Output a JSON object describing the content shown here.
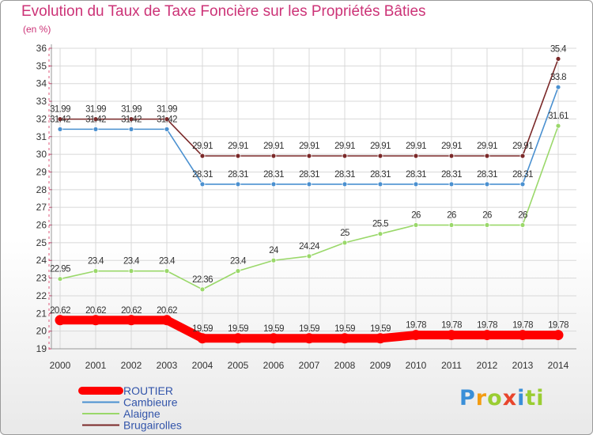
{
  "chart_data": {
    "type": "line",
    "title": "Evolution du Taux de Taxe Foncière sur les Propriétés Bâties",
    "subtitle": "(en %)",
    "ylim": [
      19,
      36
    ],
    "yticks": [
      19,
      20,
      21,
      22,
      23,
      24,
      25,
      26,
      27,
      28,
      29,
      30,
      31,
      32,
      33,
      34,
      35,
      36
    ],
    "categories": [
      "2000",
      "2001",
      "2002",
      "2003",
      "2004",
      "2005",
      "2006",
      "2007",
      "2008",
      "2009",
      "2010",
      "2011",
      "2012",
      "2013",
      "2014"
    ],
    "grid": true,
    "legend_position": "bottom-left",
    "series": [
      {
        "name": "ROUTIER",
        "color": "#ff0000",
        "values": [
          20.62,
          20.62,
          20.62,
          20.62,
          19.59,
          19.59,
          19.59,
          19.59,
          19.59,
          19.59,
          19.78,
          19.78,
          19.78,
          19.78,
          19.78
        ],
        "labels": [
          "20.62",
          "20.62",
          "20.62",
          "20.62",
          "19.59",
          "19.59",
          "19.59",
          "19.59",
          "19.59",
          "19.59",
          "19.78",
          "19.78",
          "19.78",
          "19.78",
          "19.78"
        ]
      },
      {
        "name": "Cambieure",
        "color": "#4a90d0",
        "values": [
          31.42,
          31.42,
          31.42,
          31.42,
          28.31,
          28.31,
          28.31,
          28.31,
          28.31,
          28.31,
          28.31,
          28.31,
          28.31,
          28.31,
          33.8
        ],
        "labels": [
          "31.42",
          "31.42",
          "31.42",
          "31.42",
          "28.31",
          "28.31",
          "28.31",
          "28.31",
          "28.31",
          "28.31",
          "28.31",
          "28.31",
          "28.31",
          "28.31",
          "33.8"
        ]
      },
      {
        "name": "Alaigne",
        "color": "#9ad86a",
        "values": [
          22.95,
          23.4,
          23.4,
          23.4,
          22.36,
          23.4,
          24,
          24.24,
          25,
          25.5,
          26,
          26,
          26,
          26,
          31.61
        ],
        "labels": [
          "22.95",
          "23.4",
          "23.4",
          "23.4",
          "22.36",
          "23.4",
          "24",
          "24.24",
          "25",
          "25.5",
          "26",
          "26",
          "26",
          "26",
          "31.61"
        ]
      },
      {
        "name": "Brugairolles",
        "color": "#7a2828",
        "values": [
          31.99,
          31.99,
          31.99,
          31.99,
          29.91,
          29.91,
          29.91,
          29.91,
          29.91,
          29.91,
          29.91,
          29.91,
          29.91,
          29.91,
          35.4
        ],
        "labels": [
          "31.99",
          "31.99",
          "31.99",
          "31.99",
          "29.91",
          "29.91",
          "29.91",
          "29.91",
          "29.91",
          "29.91",
          "29.91",
          "29.91",
          "29.91",
          "29.91",
          "35.4"
        ]
      }
    ]
  },
  "brand": {
    "logo_parts": [
      "P",
      "r",
      "o",
      "x",
      "i",
      "t",
      "i"
    ]
  }
}
